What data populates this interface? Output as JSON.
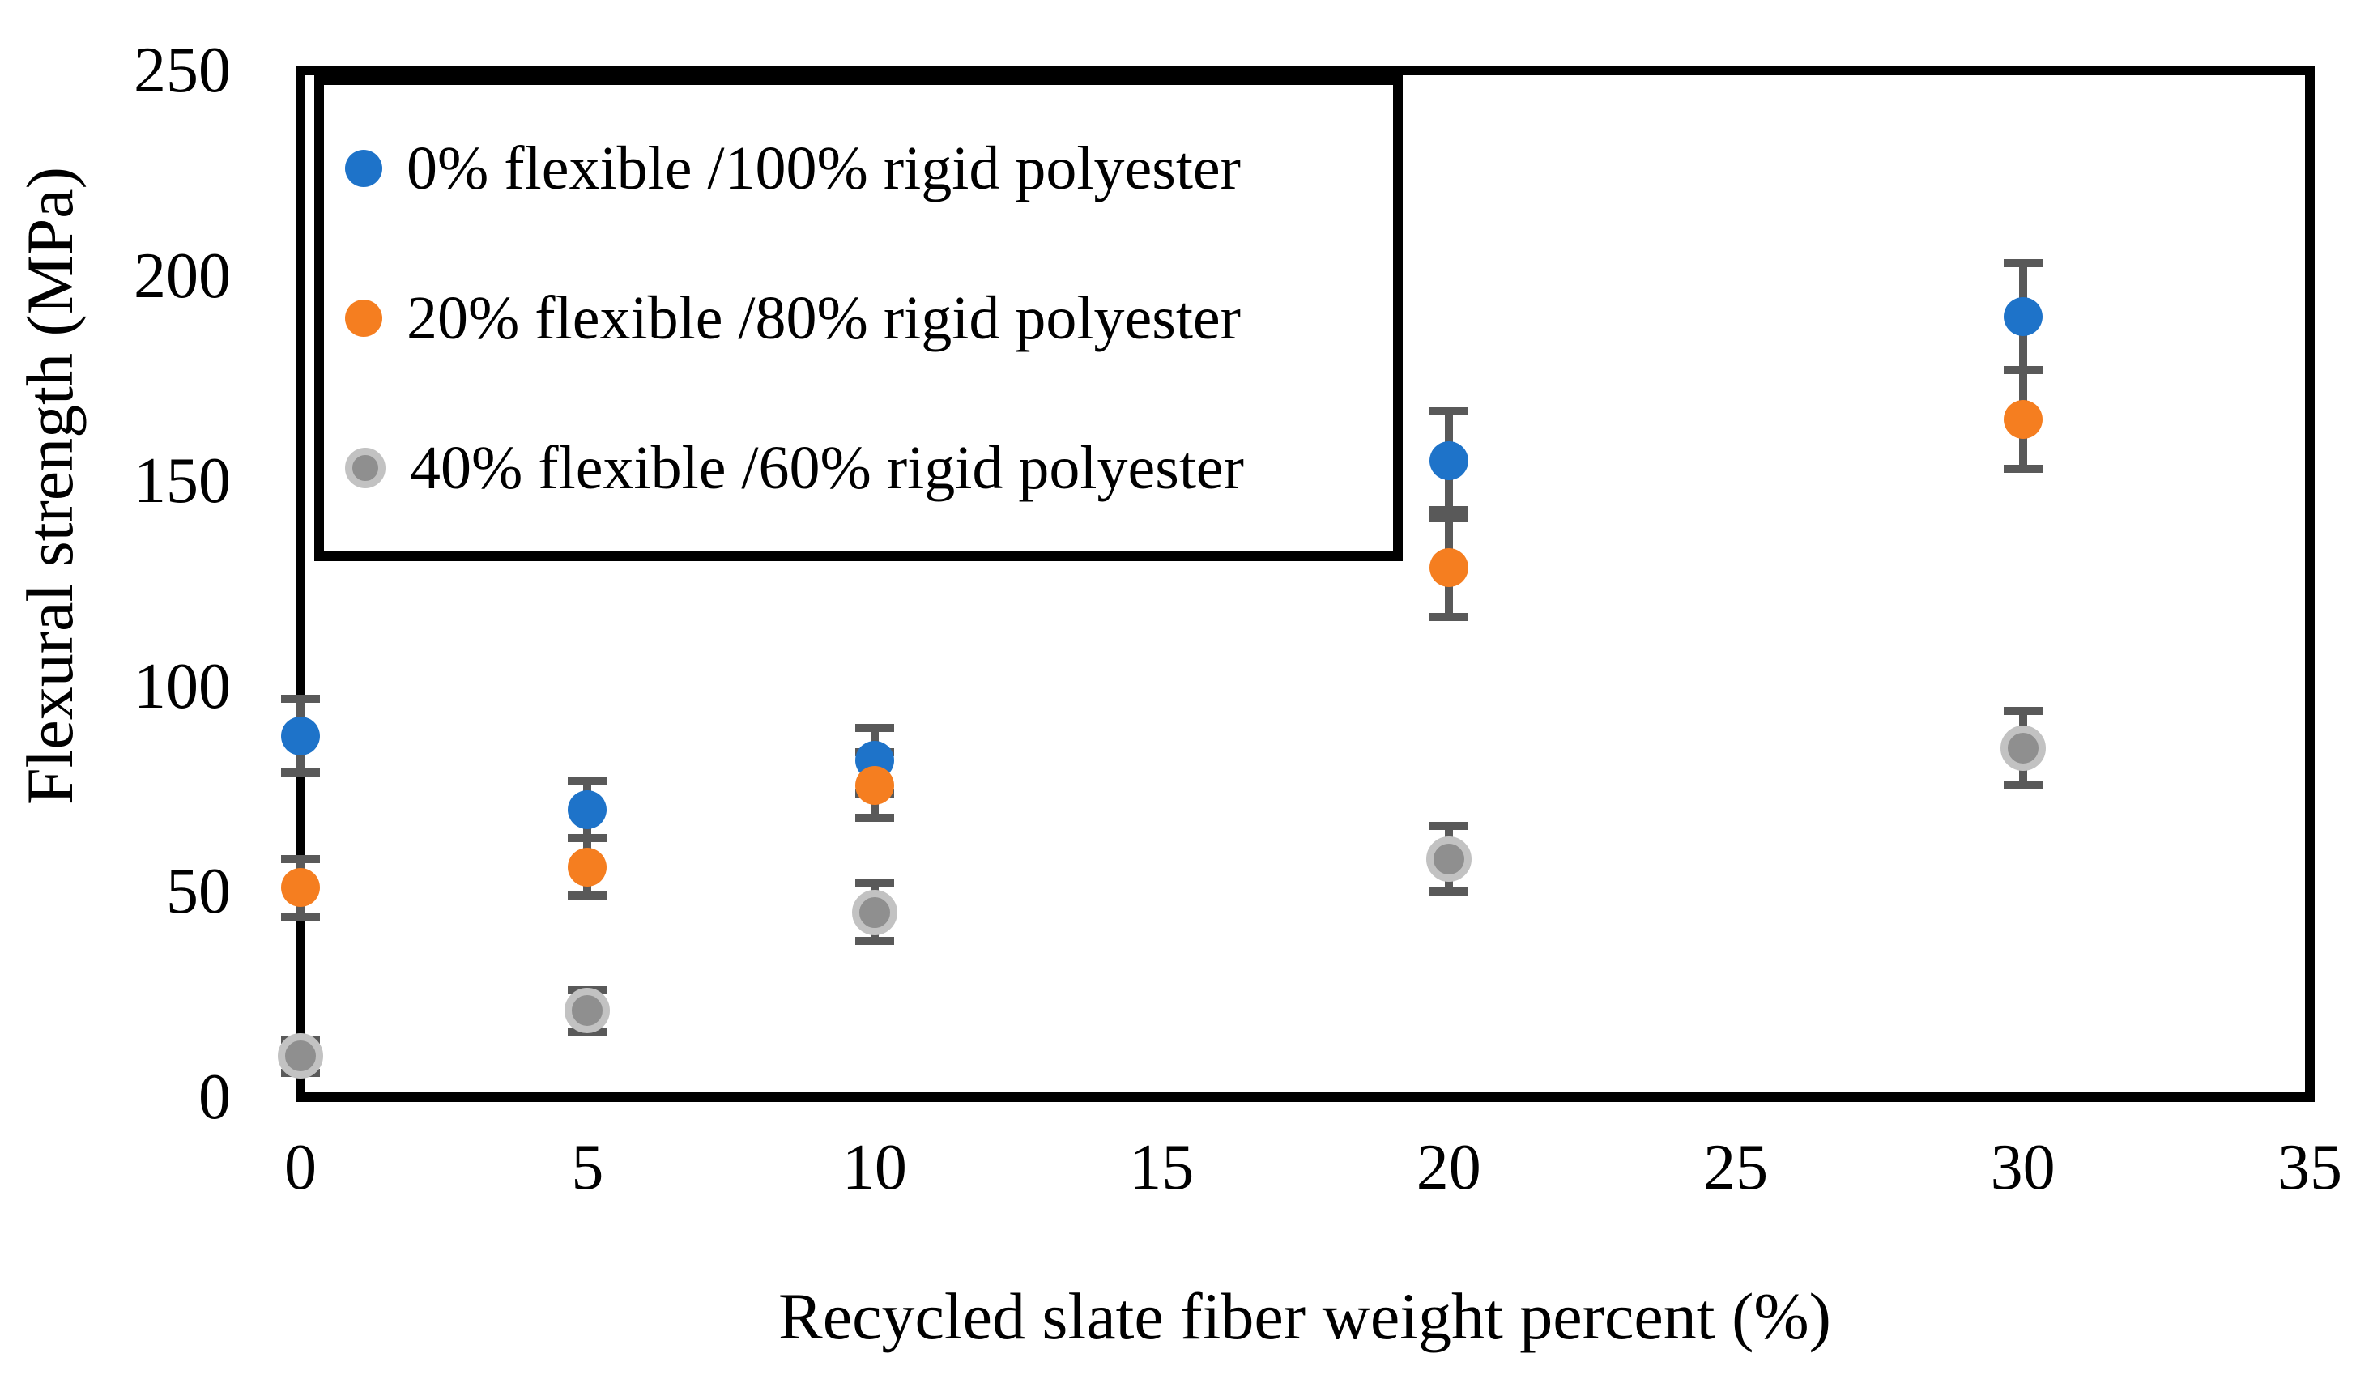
{
  "figure": {
    "background": "#ffffff",
    "text_color": "#000000"
  },
  "chart_data": {
    "type": "scatter",
    "title": "",
    "xlabel": "Recycled slate fiber weight percent (%)",
    "ylabel": "Flexural strength (MPa)",
    "xlim": [
      0,
      35
    ],
    "ylim": [
      0,
      250
    ],
    "x_ticks": [
      0,
      5,
      10,
      15,
      20,
      25,
      30,
      35
    ],
    "y_ticks": [
      0,
      50,
      100,
      150,
      200,
      250
    ],
    "grid": false,
    "legend_position": "top-left boxed",
    "error_bar_color": "#595959",
    "axis_color": "#000000",
    "series": [
      {
        "name": "0% flexible /100% rigid polyester",
        "color": "#1E73C9",
        "marker": "circle",
        "x": [
          0,
          5,
          10,
          20,
          30
        ],
        "y": [
          88,
          70,
          82,
          155,
          190
        ],
        "yerr": [
          9,
          7,
          8,
          12,
          13
        ]
      },
      {
        "name": "20% flexible /80% rigid polyester",
        "color": "#F57E20",
        "marker": "circle",
        "x": [
          0,
          5,
          10,
          20,
          30
        ],
        "y": [
          51,
          56,
          76,
          129,
          165
        ],
        "yerr": [
          7,
          7,
          8,
          12,
          12
        ]
      },
      {
        "name": "40% flexible /60% rigid polyester",
        "color": "#8F8F8F",
        "ring_color": "#C2C2C2",
        "marker": "circle-ringed",
        "x": [
          0,
          5,
          10,
          20,
          30
        ],
        "y": [
          10,
          21,
          45,
          58,
          85
        ],
        "yerr": [
          4,
          5,
          7,
          8,
          9
        ]
      }
    ]
  }
}
